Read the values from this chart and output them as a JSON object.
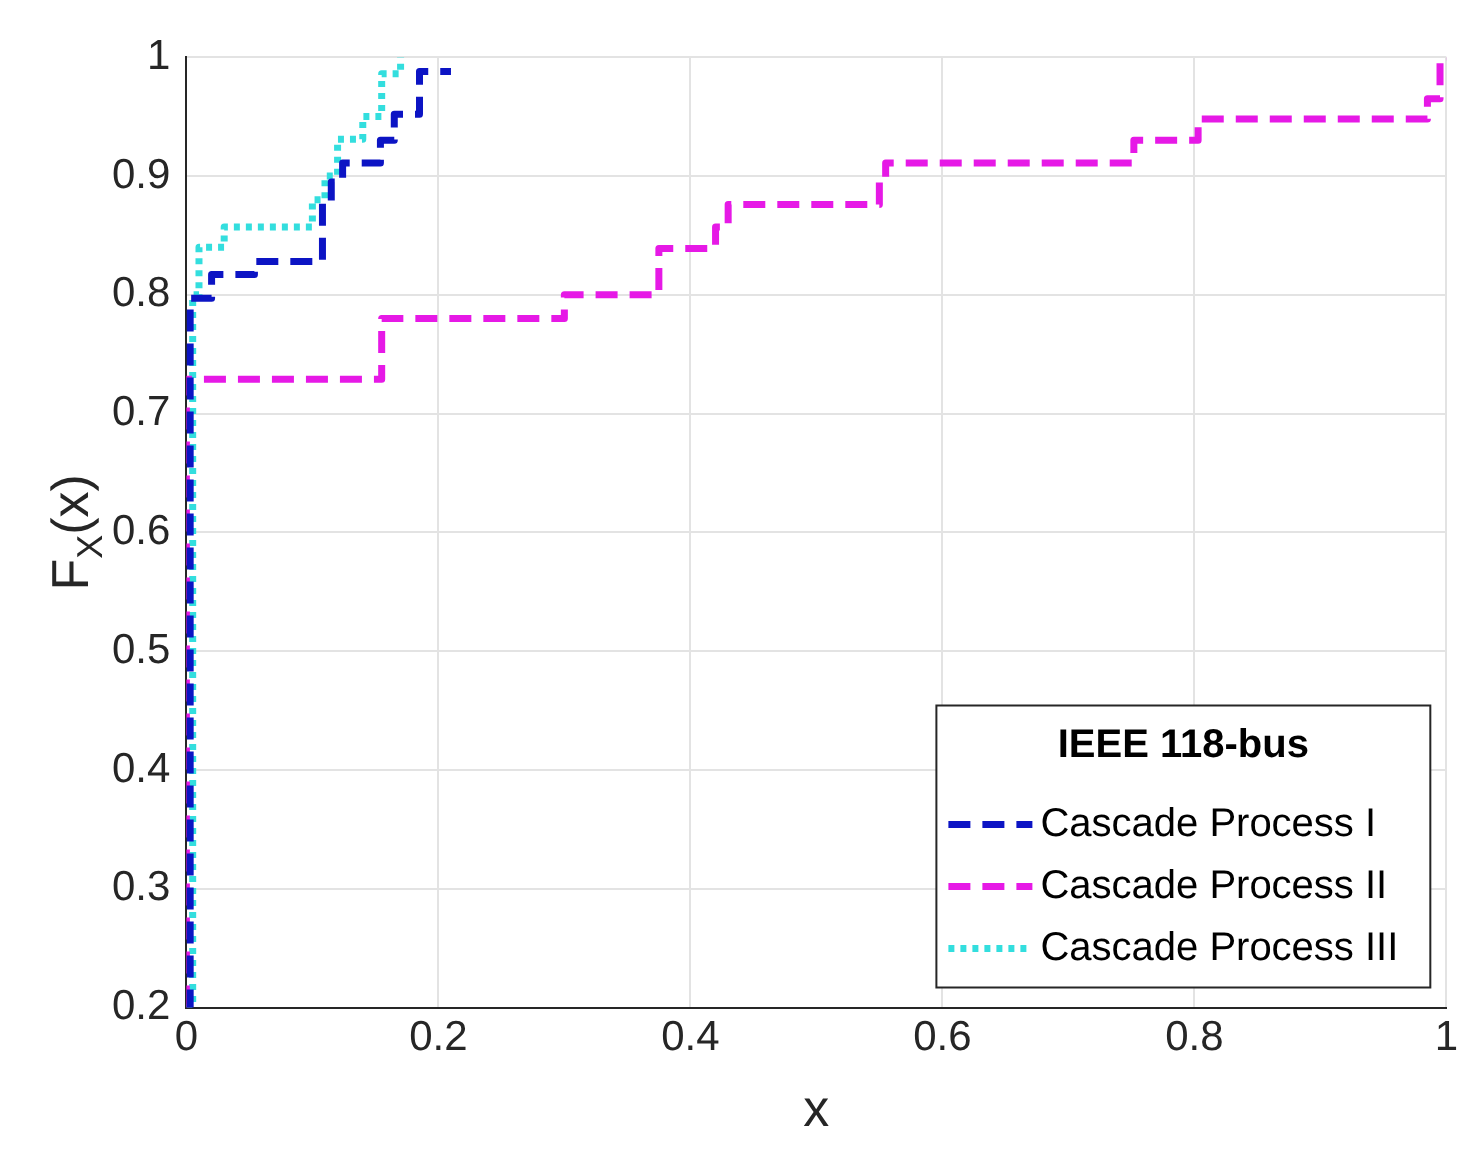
{
  "chart_data": {
    "type": "step",
    "xlabel": "x",
    "ylabel": "F$_{X}$(x)",
    "legend_title": "IEEE 118-bus",
    "xlim": [
      0,
      1
    ],
    "xticks": [
      0,
      0.2,
      0.4,
      0.6,
      0.8,
      1
    ],
    "ylim": [
      0.2,
      1
    ],
    "yticks": [
      0.2,
      0.3,
      0.4,
      0.5,
      0.6,
      0.7,
      0.8,
      0.9,
      1
    ],
    "grid": true,
    "legend": "bottom right",
    "series": [
      {
        "name": "Cascade Process I",
        "color": "#0c14c4",
        "line_style": "dashed",
        "x": [
          0,
          0.003,
          0.02,
          0.054,
          0.108,
          0.115,
          0.124,
          0.154,
          0.165,
          0.185,
          0.21
        ],
        "values": [
          0.2,
          0.797,
          0.817,
          0.828,
          0.877,
          0.895,
          0.911,
          0.93,
          0.952,
          0.988,
          0.988
        ]
      },
      {
        "name": "Cascade Process II",
        "color": "#e619e6",
        "line_style": "dashed",
        "x": [
          0,
          0,
          0.155,
          0.3,
          0.375,
          0.42,
          0.43,
          0.55,
          0.555,
          0.752,
          0.803,
          0.985,
          0.995,
          1
        ],
        "values": [
          0.2,
          0.729,
          0.78,
          0.8,
          0.839,
          0.857,
          0.876,
          0.895,
          0.911,
          0.93,
          0.948,
          0.965,
          1,
          1
        ]
      },
      {
        "name": "Cascade Process III",
        "color": "#33dede",
        "line_style": "dotted",
        "x": [
          0,
          0.005,
          0.01,
          0.03,
          0.1,
          0.11,
          0.12,
          0.14,
          0.155,
          0.17
        ],
        "values": [
          0.2,
          0.8,
          0.84,
          0.857,
          0.88,
          0.9,
          0.931,
          0.95,
          0.986,
          1
        ]
      }
    ]
  }
}
